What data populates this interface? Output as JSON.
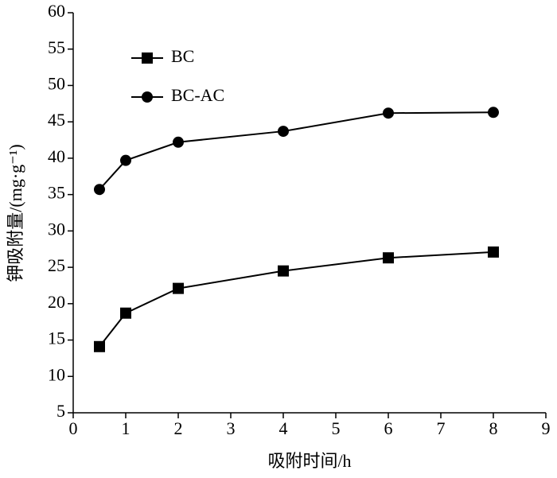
{
  "chart_data": {
    "type": "line",
    "x_label": "吸附时间/h",
    "y_label": "钾吸附量/(mg·g⁻¹)",
    "x": [
      0.5,
      1,
      2,
      4,
      6,
      8
    ],
    "series": [
      {
        "name": "BC",
        "color": "#000000",
        "marker": "square",
        "values": [
          14.1,
          18.7,
          22.1,
          24.5,
          26.3,
          27.1
        ]
      },
      {
        "name": "BC-AC",
        "color": "#000000",
        "marker": "circle",
        "values": [
          35.7,
          39.7,
          42.2,
          43.7,
          46.2,
          46.3
        ]
      }
    ],
    "xlim": [
      0,
      9
    ],
    "xticks": [
      0,
      1,
      2,
      3,
      4,
      5,
      6,
      7,
      8,
      9
    ],
    "ylim": [
      5,
      60
    ],
    "yticks": [
      5,
      10,
      15,
      20,
      25,
      30,
      35,
      40,
      45,
      50,
      55,
      60
    ],
    "legend": "upper left"
  }
}
